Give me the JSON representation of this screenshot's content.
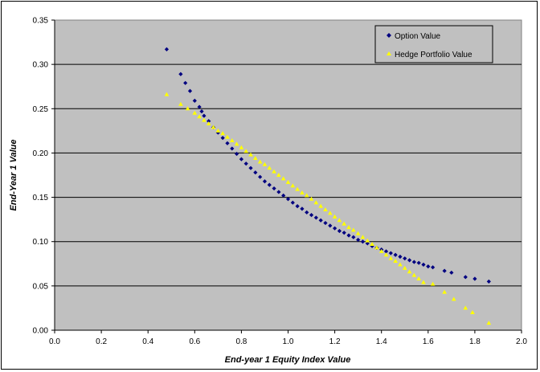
{
  "chart_data": {
    "type": "scatter",
    "xlabel": "End-year 1 Equity Index Value",
    "ylabel": "End-Year 1 Value",
    "xlim": [
      0.0,
      2.0
    ],
    "ylim": [
      0.0,
      0.35
    ],
    "x_ticks": [
      "0.0",
      "0.2",
      "0.4",
      "0.6",
      "0.8",
      "1.0",
      "1.2",
      "1.4",
      "1.6",
      "1.8",
      "2.0"
    ],
    "y_ticks": [
      "0.00",
      "0.05",
      "0.10",
      "0.15",
      "0.20",
      "0.25",
      "0.30",
      "0.35"
    ],
    "grid": "horizontal",
    "legend_position": "top-right",
    "series": [
      {
        "name": "Option Value",
        "marker": "diamond",
        "color": "#000080",
        "points": [
          [
            0.48,
            0.317
          ],
          [
            0.54,
            0.289
          ],
          [
            0.56,
            0.279
          ],
          [
            0.58,
            0.27
          ],
          [
            0.6,
            0.259
          ],
          [
            0.62,
            0.252
          ],
          [
            0.63,
            0.247
          ],
          [
            0.64,
            0.242
          ],
          [
            0.66,
            0.236
          ],
          [
            0.68,
            0.229
          ],
          [
            0.7,
            0.223
          ],
          [
            0.72,
            0.217
          ],
          [
            0.74,
            0.211
          ],
          [
            0.76,
            0.205
          ],
          [
            0.78,
            0.199
          ],
          [
            0.8,
            0.193
          ],
          [
            0.82,
            0.188
          ],
          [
            0.84,
            0.183
          ],
          [
            0.86,
            0.178
          ],
          [
            0.88,
            0.173
          ],
          [
            0.9,
            0.168
          ],
          [
            0.92,
            0.164
          ],
          [
            0.94,
            0.16
          ],
          [
            0.96,
            0.156
          ],
          [
            0.98,
            0.152
          ],
          [
            1.0,
            0.148
          ],
          [
            1.02,
            0.144
          ],
          [
            1.04,
            0.14
          ],
          [
            1.06,
            0.137
          ],
          [
            1.08,
            0.133
          ],
          [
            1.1,
            0.13
          ],
          [
            1.12,
            0.127
          ],
          [
            1.14,
            0.124
          ],
          [
            1.16,
            0.121
          ],
          [
            1.18,
            0.118
          ],
          [
            1.2,
            0.115
          ],
          [
            1.22,
            0.112
          ],
          [
            1.24,
            0.11
          ],
          [
            1.26,
            0.107
          ],
          [
            1.28,
            0.105
          ],
          [
            1.3,
            0.102
          ],
          [
            1.32,
            0.1
          ],
          [
            1.34,
            0.098
          ],
          [
            1.36,
            0.095
          ],
          [
            1.38,
            0.093
          ],
          [
            1.4,
            0.091
          ],
          [
            1.42,
            0.089
          ],
          [
            1.44,
            0.087
          ],
          [
            1.46,
            0.085
          ],
          [
            1.48,
            0.083
          ],
          [
            1.5,
            0.081
          ],
          [
            1.52,
            0.079
          ],
          [
            1.54,
            0.077
          ],
          [
            1.56,
            0.076
          ],
          [
            1.58,
            0.074
          ],
          [
            1.6,
            0.072
          ],
          [
            1.62,
            0.071
          ],
          [
            1.67,
            0.067
          ],
          [
            1.7,
            0.065
          ],
          [
            1.76,
            0.06
          ],
          [
            1.8,
            0.058
          ],
          [
            1.86,
            0.055
          ]
        ]
      },
      {
        "name": "Hedge Portfolio Value",
        "marker": "triangle",
        "color": "#FFFF00",
        "points": [
          [
            0.48,
            0.266
          ],
          [
            0.54,
            0.255
          ],
          [
            0.57,
            0.25
          ],
          [
            0.6,
            0.245
          ],
          [
            0.62,
            0.241
          ],
          [
            0.64,
            0.237
          ],
          [
            0.66,
            0.233
          ],
          [
            0.68,
            0.229
          ],
          [
            0.7,
            0.225
          ],
          [
            0.72,
            0.222
          ],
          [
            0.74,
            0.218
          ],
          [
            0.76,
            0.214
          ],
          [
            0.78,
            0.21
          ],
          [
            0.8,
            0.206
          ],
          [
            0.82,
            0.202
          ],
          [
            0.84,
            0.198
          ],
          [
            0.86,
            0.194
          ],
          [
            0.88,
            0.19
          ],
          [
            0.9,
            0.187
          ],
          [
            0.92,
            0.183
          ],
          [
            0.94,
            0.179
          ],
          [
            0.96,
            0.175
          ],
          [
            0.98,
            0.171
          ],
          [
            1.0,
            0.167
          ],
          [
            1.02,
            0.163
          ],
          [
            1.04,
            0.159
          ],
          [
            1.06,
            0.155
          ],
          [
            1.08,
            0.152
          ],
          [
            1.1,
            0.148
          ],
          [
            1.12,
            0.144
          ],
          [
            1.14,
            0.14
          ],
          [
            1.16,
            0.136
          ],
          [
            1.18,
            0.132
          ],
          [
            1.2,
            0.128
          ],
          [
            1.22,
            0.124
          ],
          [
            1.24,
            0.12
          ],
          [
            1.26,
            0.116
          ],
          [
            1.28,
            0.113
          ],
          [
            1.3,
            0.109
          ],
          [
            1.32,
            0.105
          ],
          [
            1.34,
            0.101
          ],
          [
            1.36,
            0.097
          ],
          [
            1.38,
            0.093
          ],
          [
            1.4,
            0.089
          ],
          [
            1.42,
            0.085
          ],
          [
            1.44,
            0.081
          ],
          [
            1.46,
            0.078
          ],
          [
            1.48,
            0.074
          ],
          [
            1.5,
            0.07
          ],
          [
            1.52,
            0.066
          ],
          [
            1.54,
            0.062
          ],
          [
            1.56,
            0.058
          ],
          [
            1.58,
            0.054
          ],
          [
            1.62,
            0.052
          ],
          [
            1.67,
            0.043
          ],
          [
            1.71,
            0.035
          ],
          [
            1.76,
            0.025
          ],
          [
            1.79,
            0.02
          ],
          [
            1.86,
            0.008
          ]
        ]
      }
    ]
  }
}
